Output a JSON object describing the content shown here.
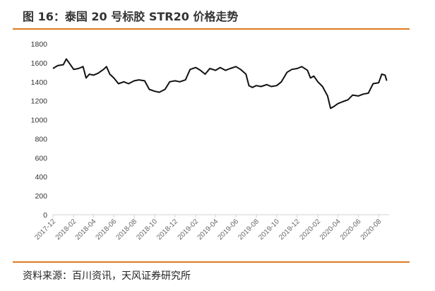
{
  "header": {
    "title": "图 16：泰国 20 号标胶 STR20 价格走势"
  },
  "footer": {
    "source": "资料来源：百川资讯，天风证券研究所"
  },
  "colors": {
    "rule": "#E07B1E",
    "line": "#111111",
    "axis": "#d0d0d0"
  },
  "chart_data": {
    "type": "line",
    "title": "",
    "xlabel": "",
    "ylabel": "",
    "ylim": [
      0,
      1800
    ],
    "yticks": [
      0,
      200,
      400,
      600,
      800,
      1000,
      1200,
      1400,
      1600,
      1800
    ],
    "xlim": [
      "2017-12",
      "2020-09"
    ],
    "xticks": [
      "2017-12",
      "2018-02",
      "2018-04",
      "2018-06",
      "2018-08",
      "2018-10",
      "2018-12",
      "2019-02",
      "2019-04",
      "2019-06",
      "2019-08",
      "2019-10",
      "2019-12",
      "2020-02",
      "2020-04",
      "2020-06",
      "2020-08"
    ],
    "grid": false,
    "series": [
      {
        "points": [
          [
            "2017-12-01",
            1540
          ],
          [
            "2017-12-15",
            1570
          ],
          [
            "2018-01-01",
            1580
          ],
          [
            "2018-01-10",
            1640
          ],
          [
            "2018-01-20",
            1590
          ],
          [
            "2018-02-01",
            1530
          ],
          [
            "2018-02-15",
            1540
          ],
          [
            "2018-03-01",
            1560
          ],
          [
            "2018-03-10",
            1440
          ],
          [
            "2018-03-20",
            1480
          ],
          [
            "2018-04-01",
            1470
          ],
          [
            "2018-04-15",
            1490
          ],
          [
            "2018-05-01",
            1530
          ],
          [
            "2018-05-10",
            1560
          ],
          [
            "2018-05-20",
            1480
          ],
          [
            "2018-06-01",
            1440
          ],
          [
            "2018-06-15",
            1380
          ],
          [
            "2018-07-01",
            1400
          ],
          [
            "2018-07-15",
            1380
          ],
          [
            "2018-08-01",
            1410
          ],
          [
            "2018-08-15",
            1420
          ],
          [
            "2018-09-01",
            1410
          ],
          [
            "2018-09-15",
            1320
          ],
          [
            "2018-10-01",
            1300
          ],
          [
            "2018-10-15",
            1290
          ],
          [
            "2018-11-01",
            1320
          ],
          [
            "2018-11-15",
            1400
          ],
          [
            "2018-12-01",
            1410
          ],
          [
            "2018-12-15",
            1400
          ],
          [
            "2019-01-01",
            1420
          ],
          [
            "2019-01-15",
            1530
          ],
          [
            "2019-02-01",
            1550
          ],
          [
            "2019-02-15",
            1520
          ],
          [
            "2019-03-01",
            1480
          ],
          [
            "2019-03-15",
            1540
          ],
          [
            "2019-04-01",
            1520
          ],
          [
            "2019-04-15",
            1550
          ],
          [
            "2019-05-01",
            1520
          ],
          [
            "2019-05-15",
            1540
          ],
          [
            "2019-06-01",
            1560
          ],
          [
            "2019-06-15",
            1530
          ],
          [
            "2019-07-01",
            1480
          ],
          [
            "2019-07-10",
            1360
          ],
          [
            "2019-07-20",
            1340
          ],
          [
            "2019-08-01",
            1360
          ],
          [
            "2019-08-15",
            1350
          ],
          [
            "2019-09-01",
            1370
          ],
          [
            "2019-09-15",
            1350
          ],
          [
            "2019-10-01",
            1360
          ],
          [
            "2019-10-15",
            1400
          ],
          [
            "2019-11-01",
            1500
          ],
          [
            "2019-11-15",
            1530
          ],
          [
            "2019-12-01",
            1540
          ],
          [
            "2019-12-15",
            1560
          ],
          [
            "2020-01-01",
            1520
          ],
          [
            "2020-01-10",
            1440
          ],
          [
            "2020-01-20",
            1460
          ],
          [
            "2020-02-01",
            1400
          ],
          [
            "2020-02-15",
            1350
          ],
          [
            "2020-03-01",
            1250
          ],
          [
            "2020-03-10",
            1120
          ],
          [
            "2020-03-20",
            1140
          ],
          [
            "2020-04-01",
            1170
          ],
          [
            "2020-04-15",
            1190
          ],
          [
            "2020-05-01",
            1210
          ],
          [
            "2020-05-15",
            1260
          ],
          [
            "2020-06-01",
            1250
          ],
          [
            "2020-06-15",
            1270
          ],
          [
            "2020-07-01",
            1280
          ],
          [
            "2020-07-15",
            1380
          ],
          [
            "2020-08-01",
            1390
          ],
          [
            "2020-08-10",
            1480
          ],
          [
            "2020-08-20",
            1470
          ],
          [
            "2020-08-25",
            1410
          ]
        ]
      }
    ]
  }
}
